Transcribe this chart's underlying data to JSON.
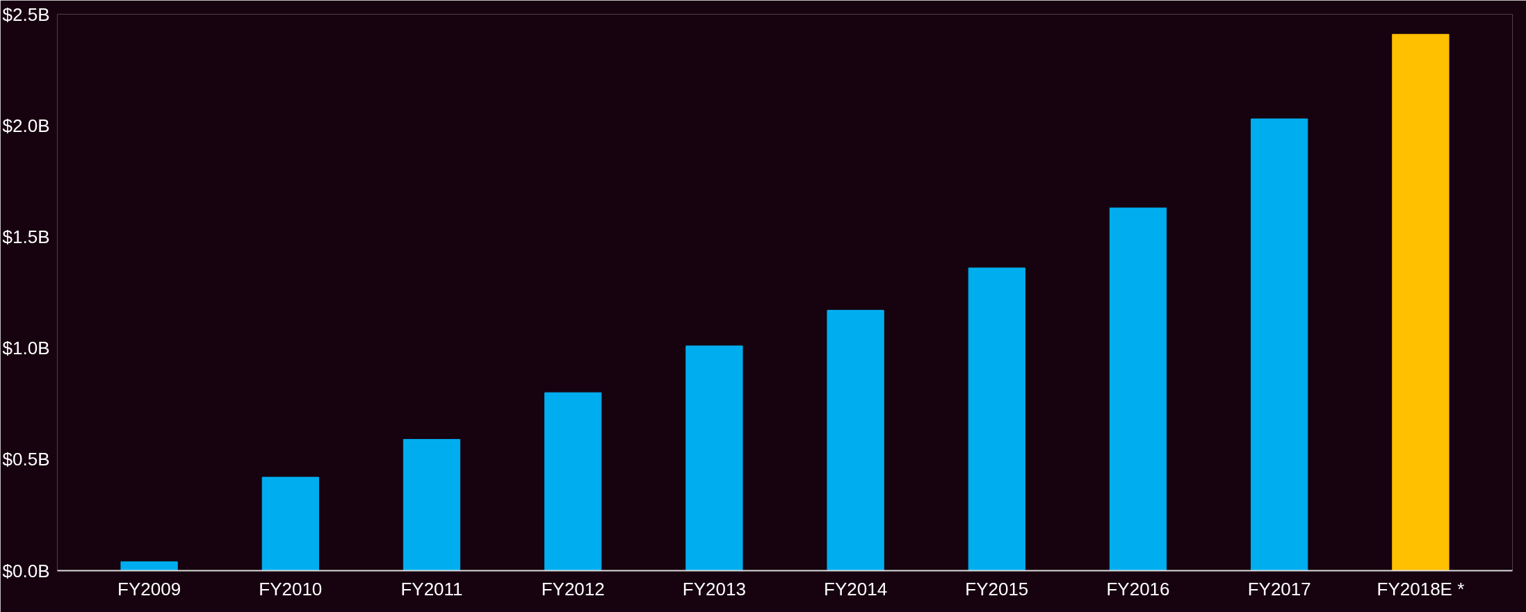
{
  "chart_data": {
    "type": "bar",
    "categories": [
      "FY2009",
      "FY2010",
      "FY2011",
      "FY2012",
      "FY2013",
      "FY2014",
      "FY2015",
      "FY2016",
      "FY2017",
      "FY2018E *"
    ],
    "values": [
      0.04,
      0.42,
      0.59,
      0.8,
      1.01,
      1.17,
      1.36,
      1.63,
      2.03,
      2.41
    ],
    "colors": [
      "#00aeef",
      "#00aeef",
      "#00aeef",
      "#00aeef",
      "#00aeef",
      "#00aeef",
      "#00aeef",
      "#00aeef",
      "#00aeef",
      "#ffc000"
    ],
    "ylim": [
      0,
      2.5
    ],
    "yticks": [
      {
        "value": 0,
        "label": "$0.0B"
      },
      {
        "value": 0.5,
        "label": "$0.5B"
      },
      {
        "value": 1,
        "label": "$1.0B"
      },
      {
        "value": 1.5,
        "label": "$1.5B"
      },
      {
        "value": 2,
        "label": "$2.0B"
      },
      {
        "value": 2.5,
        "label": "$2.5B"
      }
    ],
    "grid": false
  }
}
